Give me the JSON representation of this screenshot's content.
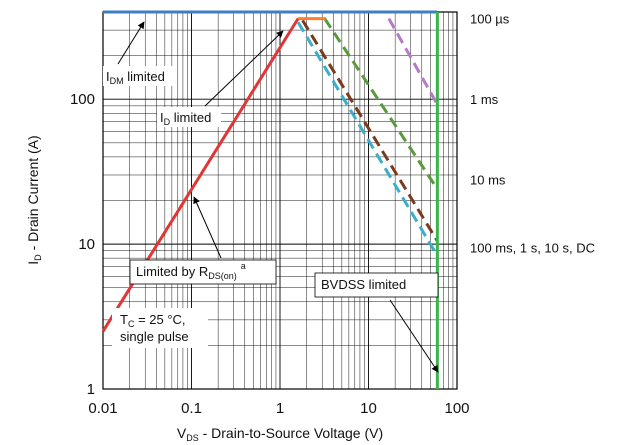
{
  "chart_data": {
    "type": "line",
    "title": "",
    "x_scale": "log",
    "y_scale": "log",
    "xlim": [
      0.01,
      100
    ],
    "ylim": [
      1,
      400
    ],
    "grid": true,
    "x_ticks": [
      0.01,
      0.1,
      1,
      10,
      100
    ],
    "x_tick_labels": [
      "0.01",
      "0.1",
      "1",
      "10",
      "100"
    ],
    "y_ticks": [
      1,
      10,
      100
    ],
    "y_tick_labels": [
      "1",
      "10",
      "100"
    ],
    "xlabel": {
      "main": "V",
      "sub": "DS",
      "rest": " - Drain-to-Source Voltage (V)"
    },
    "ylabel": {
      "main": "I",
      "sub": "D",
      "rest": " - Drain Current (A)"
    },
    "series": [
      {
        "name": "100 µs",
        "color": "#3a7fc4",
        "style": "solid",
        "x": [
          0.01,
          60
        ],
        "y": [
          400,
          400
        ]
      },
      {
        "name": "1 ms",
        "color": "#b57bc8",
        "style": "dashed",
        "x": [
          17,
          60
        ],
        "y": [
          360,
          92
        ]
      },
      {
        "name": "10 ms",
        "color": "#5a9a3c",
        "style": "dashed",
        "x": [
          3.2,
          60
        ],
        "y": [
          360,
          24
        ]
      },
      {
        "name": "100 ms, 1 s, 10 s, DC",
        "color": "#7a3a1e",
        "style": "dashed",
        "x": [
          1.8,
          60
        ],
        "y": [
          350,
          10.5
        ]
      },
      {
        "name": "",
        "color": "#3aaecb",
        "style": "dashed",
        "x": [
          1.6,
          60
        ],
        "y": [
          340,
          8.3
        ]
      },
      {
        "name": "",
        "color": "#ff7f27",
        "style": "solid",
        "x": [
          1.6,
          3.3
        ],
        "y": [
          360,
          360
        ]
      },
      {
        "name": "",
        "color": "#e23535",
        "style": "solid",
        "x": [
          0.01,
          1.6
        ],
        "y": [
          2.5,
          360
        ]
      },
      {
        "name": "",
        "color": "#3cb44b",
        "style": "solid",
        "x": [
          60,
          60
        ],
        "y": [
          1,
          400
        ]
      }
    ],
    "right_labels": [
      {
        "text": "100 µs",
        "y": 360
      },
      {
        "text": "1 ms",
        "y": 100
      },
      {
        "text": "10 ms",
        "y": 28
      },
      {
        "text": "100 ms, 1 s, 10 s, DC",
        "y": 9.5
      }
    ],
    "annotations": {
      "idm": {
        "main": "I",
        "sub": "DM",
        "rest": " limited"
      },
      "id": {
        "main": "I",
        "sub": "D",
        "rest": " limited"
      },
      "rds": {
        "main": "Limited by R",
        "sub": "DS(on)",
        "sup": "a"
      },
      "bvdss": "BVDSS limited",
      "tc_line1": {
        "main": "T",
        "sub": "C",
        "rest": " = 25 °C,"
      },
      "tc_line2": "single pulse"
    }
  }
}
